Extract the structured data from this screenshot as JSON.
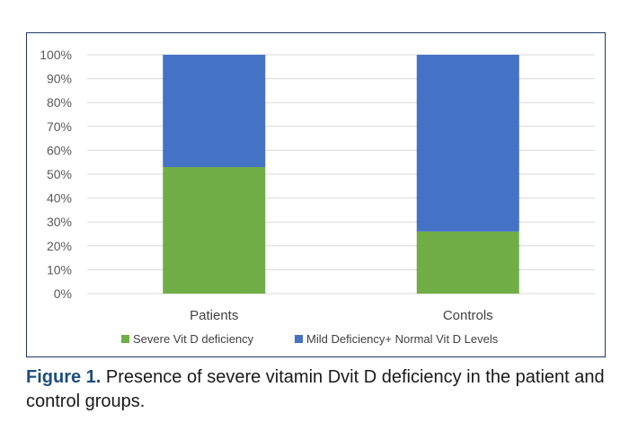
{
  "chart_data": {
    "type": "bar",
    "stacked": true,
    "categories": [
      "Patients",
      "Controls"
    ],
    "series": [
      {
        "name": "Severe Vit D deficiency",
        "color": "#70ad47",
        "values": [
          53,
          26
        ]
      },
      {
        "name": "Mild Deficiency+ Normal Vit D Levels",
        "color": "#4472c4",
        "values": [
          47,
          74
        ]
      }
    ],
    "ylim": [
      0,
      100
    ],
    "yticks": [
      "0%",
      "10%",
      "20%",
      "30%",
      "40%",
      "50%",
      "60%",
      "70%",
      "80%",
      "90%",
      "100%"
    ],
    "grid": true,
    "legend_position": "bottom"
  },
  "caption": {
    "label": "Figure 1.",
    "text": " Presence of severe vitamin Dvit D deficiency in the patient and control groups."
  }
}
